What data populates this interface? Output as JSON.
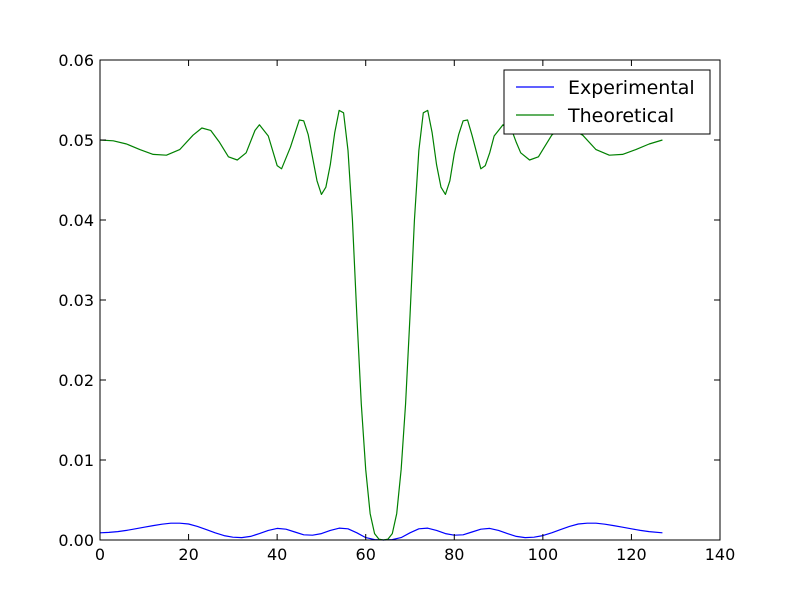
{
  "chart_data": {
    "type": "line",
    "title": "",
    "xlabel": "",
    "ylabel": "",
    "xlim": [
      0,
      140
    ],
    "ylim": [
      0,
      0.06
    ],
    "xticks": [
      0,
      20,
      40,
      60,
      80,
      100,
      120,
      140
    ],
    "yticks": [
      0,
      0.01,
      0.02,
      0.03,
      0.04,
      0.05,
      0.06
    ],
    "xtick_labels": [
      "0",
      "20",
      "40",
      "60",
      "80",
      "100",
      "120",
      "140"
    ],
    "ytick_labels": [
      "0.00",
      "0.01",
      "0.02",
      "0.03",
      "0.04",
      "0.05",
      "0.06"
    ],
    "grid": false,
    "legend_position": "top-right",
    "series": [
      {
        "name": "Experimental",
        "color": "#0000ff",
        "x": [
          0,
          2,
          4,
          6,
          8,
          10,
          12,
          14,
          16,
          18,
          20,
          22,
          24,
          26,
          28,
          30,
          32,
          34,
          36,
          38,
          40,
          42,
          44,
          46,
          48,
          50,
          52,
          54,
          56,
          58,
          60,
          62,
          64,
          66,
          68,
          70,
          72,
          74,
          76,
          78,
          80,
          82,
          84,
          86,
          88,
          90,
          92,
          94,
          96,
          98,
          100,
          102,
          104,
          106,
          108,
          110,
          112,
          114,
          116,
          118,
          120,
          122,
          124,
          127
        ],
        "y": [
          0.0009,
          0.00095,
          0.00105,
          0.0012,
          0.0014,
          0.0016,
          0.0018,
          0.00198,
          0.0021,
          0.0021,
          0.002,
          0.0017,
          0.0013,
          0.0009,
          0.00055,
          0.00035,
          0.0003,
          0.00045,
          0.0008,
          0.0012,
          0.00145,
          0.00135,
          0.001,
          0.00065,
          0.0006,
          0.0008,
          0.0012,
          0.00148,
          0.0014,
          0.0009,
          0.0003,
          5e-05,
          0.0,
          5e-05,
          0.0003,
          0.0009,
          0.0014,
          0.00148,
          0.0012,
          0.0008,
          0.0006,
          0.00065,
          0.001,
          0.00135,
          0.00145,
          0.0012,
          0.0008,
          0.00045,
          0.0003,
          0.00035,
          0.00055,
          0.0009,
          0.0013,
          0.0017,
          0.002,
          0.0021,
          0.0021,
          0.00198,
          0.0018,
          0.0016,
          0.0014,
          0.0012,
          0.00105,
          0.0009
        ]
      },
      {
        "name": "Theoretical",
        "color": "#008000",
        "x": [
          0,
          3,
          6,
          9,
          12,
          15,
          18,
          21,
          23,
          25,
          27,
          29,
          31,
          33,
          35,
          36,
          38,
          40,
          41,
          43,
          45,
          46,
          47,
          49,
          50,
          51,
          52,
          53,
          54,
          55,
          56,
          57,
          58,
          59,
          60,
          61,
          62,
          63,
          64,
          65,
          66,
          67,
          68,
          69,
          70,
          71,
          72,
          73,
          74,
          75,
          76,
          77,
          78,
          79,
          80,
          81,
          82,
          83,
          84,
          86,
          87,
          88,
          89,
          91,
          93,
          94,
          95,
          97,
          99,
          100,
          102,
          104,
          106,
          109,
          112,
          115,
          118,
          121,
          124,
          127
        ],
        "y": [
          0.05,
          0.0499,
          0.0495,
          0.0488,
          0.0482,
          0.0481,
          0.0488,
          0.0506,
          0.0515,
          0.0512,
          0.0497,
          0.0479,
          0.0475,
          0.0484,
          0.0512,
          0.0519,
          0.0505,
          0.0468,
          0.0464,
          0.0491,
          0.0525,
          0.0524,
          0.0507,
          0.0449,
          0.0432,
          0.0441,
          0.0469,
          0.0509,
          0.0537,
          0.0534,
          0.0487,
          0.04,
          0.028,
          0.017,
          0.0088,
          0.0033,
          0.0008,
          0.0001,
          0.0,
          0.0001,
          0.0008,
          0.0033,
          0.0088,
          0.017,
          0.028,
          0.04,
          0.0487,
          0.0534,
          0.0537,
          0.0509,
          0.0469,
          0.0441,
          0.0432,
          0.0449,
          0.0483,
          0.0507,
          0.0524,
          0.0525,
          0.0506,
          0.0464,
          0.0468,
          0.0484,
          0.0505,
          0.0519,
          0.0512,
          0.0497,
          0.0484,
          0.0475,
          0.0479,
          0.0488,
          0.0506,
          0.0515,
          0.0515,
          0.0506,
          0.0488,
          0.0481,
          0.0482,
          0.0488,
          0.0495,
          0.05
        ]
      }
    ]
  }
}
